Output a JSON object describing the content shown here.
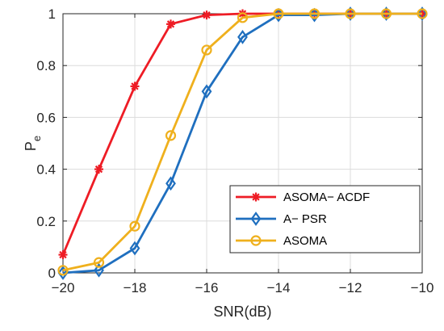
{
  "chart_data": {
    "type": "line",
    "title": "",
    "xlabel": "SNR(dB)",
    "ylabel": "P",
    "ylabel_subscript": "e",
    "xlim": [
      -20,
      -10
    ],
    "ylim": [
      0,
      1
    ],
    "xticks": [
      -20,
      -18,
      -16,
      -14,
      -12,
      -10
    ],
    "xtick_labels": [
      "−20",
      "−18",
      "−16",
      "−14",
      "−12",
      "−10"
    ],
    "yticks": [
      0,
      0.2,
      0.4,
      0.6,
      0.8,
      1
    ],
    "ytick_labels": [
      "0",
      "0.2",
      "0.4",
      "0.6",
      "0.8",
      "1"
    ],
    "grid": true,
    "legend_position": "bottom-right",
    "x": [
      -20,
      -19,
      -18,
      -17,
      -16,
      -15,
      -14,
      -13,
      -12,
      -11,
      -10
    ],
    "series": [
      {
        "name": "ASOMA− ACDF",
        "color": "#ee1c25",
        "marker": "asterisk",
        "values": [
          0.07,
          0.4,
          0.72,
          0.96,
          0.995,
          1.0,
          1.0,
          1.0,
          1.0,
          1.0,
          1.0
        ]
      },
      {
        "name": "A− PSR",
        "color": "#1f6fbf",
        "marker": "diamond",
        "values": [
          0.0,
          0.01,
          0.095,
          0.345,
          0.7,
          0.91,
          0.995,
          0.995,
          1.0,
          1.0,
          1.0
        ]
      },
      {
        "name": "ASOMA",
        "color": "#efb01d",
        "marker": "circle",
        "values": [
          0.01,
          0.04,
          0.18,
          0.53,
          0.86,
          0.985,
          1.0,
          1.0,
          1.0,
          1.0,
          1.0
        ]
      }
    ]
  }
}
